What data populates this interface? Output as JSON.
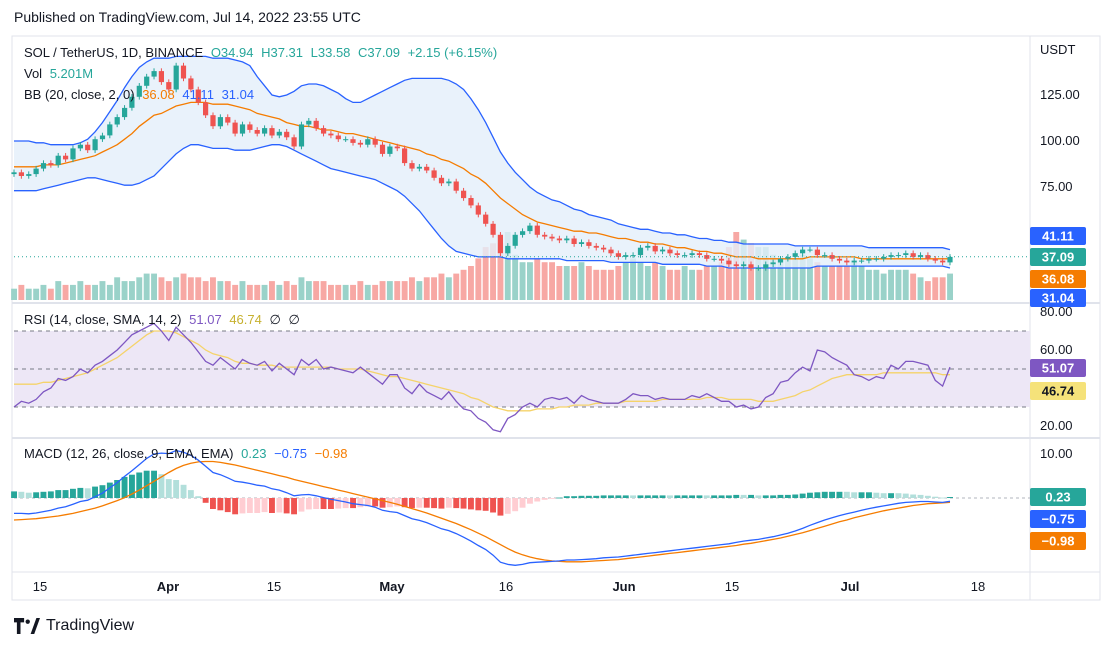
{
  "published": "Published on TradingView.com, Jul 14, 2022 23:55 UTC",
  "footer": {
    "brand": "TradingView"
  },
  "legend": {
    "symbol": "SOL / TetherUS, 1D, BINANCE",
    "open": "O34.94",
    "high": "H37.31",
    "low": "L33.58",
    "close": "C37.09",
    "change": "+2.15 (+6.15%)",
    "vol_label": "Vol",
    "vol_value": "5.201M",
    "bb_label": "BB (20, close, 2, 0)",
    "bb_basis": "36.08",
    "bb_upper": "41.11",
    "bb_lower": "31.04",
    "rsi_label": "RSI (14, close, SMA, 14, 2)",
    "rsi_value": "51.07",
    "rsi_ma": "46.74",
    "rsi_na1": "∅",
    "rsi_na2": "∅",
    "macd_label": "MACD (12, 26, close, 9, EMA, EMA)",
    "macd_hist": "0.23",
    "macd_line": "−0.75",
    "macd_signal": "−0.98"
  },
  "colors": {
    "up": "#26a69a",
    "down": "#ef5350",
    "volUp": "#9ad2c9",
    "volDown": "#f7a8a4",
    "bbBand": "#2962ff",
    "bbBasis": "#f57c00",
    "bbFill": "#e3effa",
    "rsi": "#7e57c2",
    "rsiMa": "#f5d36a",
    "rsiBg": "#ede7f6",
    "macd": "#2962ff",
    "signal": "#f57c00",
    "histUpStrong": "#26a69a",
    "histUpWeak": "#b2dfdb",
    "histDnStrong": "#ef5350",
    "histDnWeak": "#ffcdd2"
  },
  "chart_data": [
    {
      "type": "candlestick",
      "title": "SOL / TetherUS, 1D, BINANCE",
      "unit_label": "USDT",
      "x_ticks": [
        "15",
        "Apr",
        "15",
        "May",
        "16",
        "Jun",
        "15",
        "Jul",
        "18"
      ],
      "y_ticks": [
        "125.00",
        "100.00",
        "75.00"
      ],
      "price_labels": [
        {
          "text": "41.11",
          "color": "#2962ff"
        },
        {
          "text": "37.09",
          "color": "#26a69a"
        },
        {
          "text": "36.08",
          "color": "#f57c00"
        },
        {
          "text": "31.04",
          "color": "#2962ff"
        }
      ],
      "last_candle": {
        "open": 34.94,
        "high": 37.31,
        "low": 33.58,
        "close": 37.09
      },
      "close": [
        83,
        81,
        82,
        85,
        88,
        87,
        92,
        90,
        96,
        98,
        95,
        101,
        103,
        109,
        113,
        118,
        124,
        130,
        135,
        138,
        132,
        128,
        141,
        134,
        128,
        121,
        114,
        108,
        113,
        110,
        104,
        109,
        106,
        104,
        107,
        103,
        105,
        102,
        97,
        109,
        111,
        107,
        104,
        103,
        101,
        101,
        99,
        98,
        101,
        98,
        93,
        97,
        96,
        88,
        85,
        86,
        84,
        80,
        77,
        78,
        73,
        69,
        65,
        60,
        55,
        49,
        39,
        43,
        49,
        51,
        54,
        49,
        48,
        47,
        46,
        47,
        44,
        45,
        43,
        42,
        41,
        39,
        37,
        38,
        38,
        42,
        43,
        40,
        41,
        39,
        38,
        38,
        39,
        38,
        36,
        36,
        35,
        33,
        32,
        33,
        31,
        31,
        33,
        34,
        36,
        37,
        39,
        41,
        41,
        38,
        38,
        36,
        35,
        34,
        35,
        35,
        36,
        36,
        37,
        38,
        38,
        39,
        37,
        38,
        36,
        35,
        34,
        37
      ],
      "bb_basis": [
        86,
        86,
        86,
        86,
        87,
        87,
        87,
        88,
        89,
        90,
        91,
        92,
        94,
        96,
        98,
        101,
        104,
        108,
        111,
        114,
        115,
        117,
        119,
        120,
        121,
        121,
        121,
        120,
        120,
        120,
        119,
        118,
        117,
        115,
        114,
        113,
        112,
        110,
        109,
        108,
        108,
        107,
        106,
        106,
        105,
        104,
        104,
        103,
        102,
        101,
        100,
        99,
        98,
        97,
        96,
        95,
        93,
        92,
        90,
        89,
        87,
        85,
        82,
        80,
        77,
        73,
        69,
        66,
        63,
        60,
        58,
        56,
        55,
        54,
        53,
        52,
        51,
        51,
        50,
        50,
        49,
        48,
        47,
        47,
        46,
        45,
        45,
        44,
        44,
        43,
        42,
        42,
        41,
        40,
        40,
        39,
        39,
        38,
        37,
        37,
        37,
        36,
        36,
        36,
        36,
        36,
        36,
        36,
        37,
        37,
        37,
        37,
        37,
        37,
        37,
        36,
        36,
        36,
        36,
        36,
        36,
        36,
        36,
        36,
        36,
        36,
        36,
        36
      ],
      "bb_upper": [
        100,
        100,
        100,
        99,
        99,
        98,
        98,
        98,
        98,
        99,
        101,
        105,
        110,
        116,
        122,
        129,
        135,
        140,
        143,
        145,
        145,
        145,
        146,
        146,
        146,
        146,
        146,
        145,
        145,
        145,
        144,
        143,
        141,
        135,
        130,
        125,
        124,
        125,
        127,
        130,
        131,
        131,
        130,
        128,
        126,
        123,
        121,
        121,
        123,
        125,
        127,
        129,
        131,
        133,
        134,
        134,
        134,
        134,
        134,
        133,
        131,
        128,
        123,
        117,
        110,
        102,
        94,
        88,
        83,
        79,
        75,
        72,
        70,
        68,
        67,
        65,
        63,
        62,
        60,
        59,
        58,
        57,
        55,
        54,
        53,
        52,
        52,
        51,
        50,
        50,
        49,
        49,
        48,
        47,
        47,
        46,
        46,
        45,
        45,
        44,
        44,
        44,
        44,
        44,
        44,
        44,
        43,
        43,
        43,
        43,
        43,
        43,
        43,
        43,
        43,
        43,
        42,
        42,
        42,
        42,
        42,
        42,
        42,
        42,
        42,
        42,
        42,
        41
      ],
      "bb_lower": [
        73,
        73,
        73,
        73,
        74,
        75,
        76,
        77,
        78,
        79,
        80,
        80,
        79,
        78,
        77,
        76,
        76,
        77,
        79,
        81,
        85,
        89,
        93,
        96,
        98,
        98,
        97,
        96,
        96,
        96,
        95,
        95,
        95,
        96,
        97,
        98,
        98,
        97,
        95,
        93,
        91,
        89,
        87,
        85,
        84,
        83,
        82,
        81,
        80,
        79,
        77,
        75,
        73,
        70,
        66,
        62,
        57,
        52,
        47,
        43,
        40,
        39,
        38,
        37,
        37,
        37,
        37,
        36,
        36,
        36,
        36,
        36,
        36,
        36,
        36,
        35,
        35,
        35,
        35,
        35,
        35,
        34,
        34,
        34,
        34,
        34,
        34,
        34,
        33,
        33,
        33,
        33,
        33,
        33,
        32,
        32,
        32,
        31,
        31,
        31,
        31,
        31,
        31,
        31,
        31,
        31,
        31,
        31,
        31,
        32,
        32,
        32,
        32,
        32,
        32,
        32,
        32,
        32,
        32,
        32,
        32,
        32,
        32,
        32,
        32,
        32,
        32,
        31
      ],
      "volume": [
        3,
        4,
        3,
        3,
        4,
        3,
        5,
        4,
        4,
        5,
        4,
        4,
        5,
        4,
        6,
        5,
        5,
        6,
        7,
        7,
        6,
        5,
        6,
        7,
        6,
        6,
        5,
        6,
        5,
        5,
        4,
        5,
        4,
        4,
        4,
        5,
        4,
        5,
        4,
        6,
        5,
        5,
        5,
        4,
        4,
        4,
        4,
        5,
        4,
        4,
        5,
        5,
        5,
        5,
        6,
        5,
        6,
        6,
        7,
        6,
        7,
        8,
        9,
        11,
        14,
        15,
        15,
        18,
        12,
        10,
        10,
        11,
        10,
        10,
        9,
        9,
        9,
        10,
        9,
        8,
        8,
        8,
        9,
        10,
        11,
        10,
        9,
        10,
        9,
        8,
        8,
        9,
        8,
        8,
        9,
        9,
        10,
        14,
        18,
        16,
        15,
        14,
        14,
        12,
        11,
        11,
        11,
        12,
        11,
        10,
        9,
        9,
        9,
        9,
        10,
        9,
        8,
        8,
        7,
        8,
        8,
        8,
        7,
        6,
        5,
        6,
        6,
        7
      ]
    },
    {
      "type": "line",
      "title": "RSI (14, close, SMA, 14, 2)",
      "y_ticks": [
        "80.00",
        "60.00",
        "20.00"
      ],
      "bands": [
        70,
        50,
        30
      ],
      "value_labels": [
        {
          "text": "51.07",
          "color": "#7e57c2"
        },
        {
          "text": "46.74",
          "color": "#c7b12f"
        }
      ],
      "rsi": [
        30,
        33,
        32,
        34,
        38,
        40,
        45,
        44,
        46,
        50,
        48,
        52,
        54,
        57,
        60,
        64,
        68,
        70,
        72,
        74,
        70,
        65,
        72,
        68,
        64,
        59,
        54,
        52,
        56,
        53,
        50,
        55,
        53,
        52,
        54,
        49,
        53,
        50,
        47,
        55,
        52,
        55,
        50,
        51,
        50,
        49,
        48,
        51,
        48,
        45,
        42,
        47,
        47,
        40,
        37,
        42,
        38,
        36,
        34,
        38,
        33,
        29,
        28,
        24,
        22,
        18,
        17,
        24,
        26,
        30,
        32,
        30,
        34,
        35,
        34,
        35,
        32,
        36,
        34,
        33,
        32,
        32,
        32,
        34,
        37,
        36,
        36,
        34,
        35,
        34,
        34,
        34,
        36,
        35,
        37,
        35,
        33,
        33,
        30,
        31,
        29,
        30,
        35,
        37,
        43,
        44,
        48,
        51,
        49,
        60,
        59,
        56,
        54,
        52,
        47,
        46,
        44,
        46,
        45,
        52,
        50,
        54,
        54,
        53,
        52,
        44,
        41,
        51
      ],
      "rsi_ma": [
        42,
        42,
        42,
        42,
        43,
        43,
        44,
        45,
        46,
        47,
        48,
        50,
        52,
        54,
        56,
        59,
        62,
        65,
        68,
        70,
        70,
        70,
        69,
        67,
        65,
        63,
        60,
        58,
        57,
        56,
        54,
        53,
        53,
        52,
        52,
        52,
        51,
        51,
        51,
        51,
        51,
        51,
        51,
        51,
        50,
        50,
        50,
        50,
        49,
        48,
        47,
        46,
        46,
        45,
        44,
        43,
        42,
        41,
        40,
        39,
        38,
        37,
        35,
        34,
        32,
        30,
        29,
        28,
        28,
        28,
        28,
        29,
        29,
        29,
        30,
        30,
        31,
        31,
        31,
        32,
        32,
        32,
        32,
        33,
        33,
        33,
        33,
        33,
        34,
        34,
        34,
        34,
        34,
        34,
        35,
        35,
        35,
        34,
        34,
        34,
        34,
        33,
        33,
        33,
        34,
        35,
        36,
        38,
        39,
        41,
        43,
        45,
        46,
        47,
        47,
        47,
        47,
        47,
        48,
        48,
        48,
        48,
        48,
        48,
        48,
        48,
        47,
        47
      ]
    },
    {
      "type": "line+bar",
      "title": "MACD (12, 26, close, 9, EMA, EMA)",
      "y_ticks": [
        "10.00"
      ],
      "value_labels": [
        {
          "text": "0.23",
          "color": "#26a69a"
        },
        {
          "text": "−0.75",
          "color": "#2962ff"
        },
        {
          "text": "−0.98",
          "color": "#f57c00"
        }
      ],
      "macd": [
        -3.5,
        -3.5,
        -3.6,
        -3.4,
        -3.1,
        -2.8,
        -2.3,
        -2.0,
        -1.4,
        -0.8,
        -0.5,
        0.3,
        1.1,
        2.3,
        3.5,
        4.9,
        6.2,
        7.6,
        9,
        10,
        10.2,
        10.1,
        10.8,
        10.4,
        9.7,
        8.6,
        7.2,
        5.8,
        5.3,
        4.6,
        3.8,
        3.6,
        3.3,
        2.9,
        2.7,
        2.1,
        1.8,
        1.2,
        0.5,
        0.7,
        0.8,
        0.5,
        0.1,
        -0.3,
        -0.6,
        -0.9,
        -1.3,
        -1.5,
        -1.7,
        -2.1,
        -2.8,
        -3.1,
        -3.3,
        -4,
        -4.7,
        -5.1,
        -5.6,
        -6.3,
        -7,
        -7.4,
        -8.1,
        -8.9,
        -9.8,
        -10.8,
        -11.7,
        -13,
        -14.6,
        -15.1,
        -15.3,
        -15.1,
        -14.7,
        -14.6,
        -14.5,
        -14.4,
        -14.3,
        -14.1,
        -14.1,
        -14,
        -13.9,
        -13.8,
        -13.6,
        -13.5,
        -13.4,
        -13.2,
        -13,
        -12.8,
        -12.6,
        -12.4,
        -12.2,
        -12,
        -11.8,
        -11.6,
        -11.4,
        -11.2,
        -11,
        -10.8,
        -10.6,
        -10.4,
        -10.1,
        -9.8,
        -9.6,
        -9.4,
        -9.1,
        -8.8,
        -8.4,
        -8,
        -7.5,
        -6.9,
        -6.2,
        -5.6,
        -5,
        -4.5,
        -4,
        -3.6,
        -3.2,
        -2.8,
        -2.4,
        -2.1,
        -1.8,
        -1.5,
        -1.2,
        -1,
        -0.9,
        -0.8,
        -0.8,
        -0.9,
        -1,
        -0.75
      ],
      "signal": [
        -5,
        -4.9,
        -4.8,
        -4.7,
        -4.5,
        -4.3,
        -4.1,
        -3.8,
        -3.5,
        -3.1,
        -2.7,
        -2.3,
        -1.8,
        -1.2,
        -0.6,
        0.1,
        0.9,
        1.8,
        2.8,
        3.8,
        4.8,
        5.8,
        6.7,
        7.4,
        7.9,
        8.2,
        8.3,
        8.3,
        8.1,
        7.8,
        7.5,
        7.1,
        6.7,
        6.3,
        5.9,
        5.5,
        5.1,
        4.7,
        4.2,
        3.8,
        3.4,
        3.0,
        2.6,
        2.2,
        1.8,
        1.4,
        1.0,
        0.6,
        0.2,
        -0.2,
        -0.6,
        -1.0,
        -1.4,
        -1.9,
        -2.4,
        -2.9,
        -3.4,
        -4.0,
        -4.6,
        -5.2,
        -5.8,
        -6.5,
        -7.2,
        -8.0,
        -8.8,
        -9.7,
        -10.6,
        -11.5,
        -12.3,
        -12.9,
        -13.4,
        -13.8,
        -14.1,
        -14.3,
        -14.4,
        -14.5,
        -14.5,
        -14.5,
        -14.4,
        -14.3,
        -14.2,
        -14.1,
        -14.0,
        -13.8,
        -13.6,
        -13.4,
        -13.2,
        -13.0,
        -12.8,
        -12.6,
        -12.4,
        -12.2,
        -12.0,
        -11.8,
        -11.6,
        -11.4,
        -11.2,
        -11.0,
        -10.8,
        -10.5,
        -10.3,
        -10.0,
        -9.7,
        -9.4,
        -9.1,
        -8.7,
        -8.3,
        -7.9,
        -7.4,
        -6.9,
        -6.4,
        -5.9,
        -5.4,
        -5.0,
        -4.5,
        -4.1,
        -3.7,
        -3.3,
        -2.9,
        -2.6,
        -2.3,
        -2.0,
        -1.7,
        -1.5,
        -1.3,
        -1.2,
        -1.1,
        -0.98
      ]
    }
  ]
}
